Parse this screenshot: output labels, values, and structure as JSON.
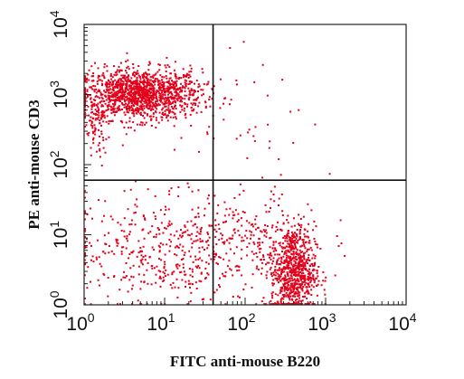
{
  "chart_data": {
    "type": "scatter",
    "title": "",
    "xlabel": "FITC anti-mouse B220",
    "ylabel": "PE anti-mouse CD3",
    "xscale": "log",
    "yscale": "log",
    "xlim": [
      1,
      10000
    ],
    "ylim": [
      1,
      10000
    ],
    "x_ticks": [
      {
        "base": "10",
        "exp": "0"
      },
      {
        "base": "10",
        "exp": "1"
      },
      {
        "base": "10",
        "exp": "2"
      },
      {
        "base": "10",
        "exp": "3"
      },
      {
        "base": "10",
        "exp": "4"
      }
    ],
    "y_ticks": [
      {
        "base": "10",
        "exp": "0"
      },
      {
        "base": "10",
        "exp": "1"
      },
      {
        "base": "10",
        "exp": "2"
      },
      {
        "base": "10",
        "exp": "3"
      },
      {
        "base": "10",
        "exp": "4"
      }
    ],
    "quadrant_gates": {
      "x": 40,
      "y": 60
    },
    "grid": false,
    "point_color": "#e3001b",
    "populations": [
      {
        "center": [
          5,
          1000
        ],
        "spread": [
          0.38,
          0.18
        ],
        "count": 1400
      },
      {
        "center": [
          400,
          3
        ],
        "spread": [
          0.14,
          0.32
        ],
        "count": 750
      },
      {
        "center": [
          8,
          6
        ],
        "spread": [
          0.6,
          0.4
        ],
        "count": 420
      },
      {
        "center": [
          120,
          8
        ],
        "spread": [
          0.45,
          0.35
        ],
        "count": 230
      },
      {
        "center": [
          150,
          150
        ],
        "spread": [
          0.55,
          0.6
        ],
        "count": 45
      },
      {
        "center": [
          1.4,
          300
        ],
        "spread": [
          0.08,
          0.25
        ],
        "count": 70
      }
    ]
  }
}
